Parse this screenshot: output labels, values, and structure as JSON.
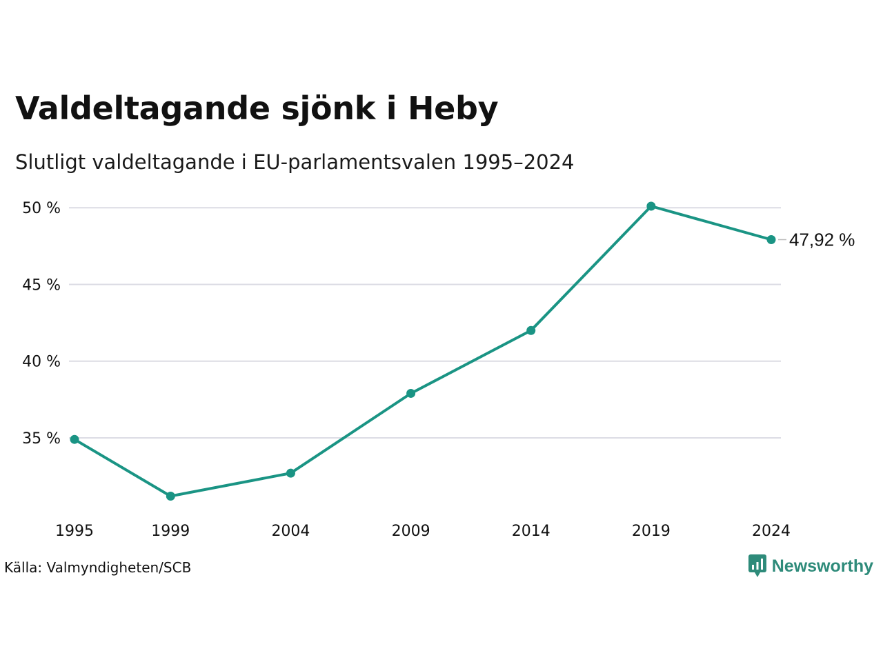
{
  "chart_data": {
    "type": "line",
    "title": "Valdeltagande sjönk i Heby",
    "subtitle": "Slutligt valdeltagande i EU-parlamentsvalen 1995–2024",
    "x": [
      1995,
      1999,
      2004,
      2009,
      2014,
      2019,
      2024
    ],
    "x_tick_labels": [
      "1995",
      "1999",
      "2004",
      "2009",
      "2014",
      "2019",
      "2024"
    ],
    "series": [
      {
        "values": [
          34.9,
          31.2,
          32.7,
          37.9,
          42.0,
          50.1,
          47.92
        ],
        "color": "#1a9484"
      }
    ],
    "y_ticks": [
      35,
      40,
      45,
      50
    ],
    "y_tick_labels": [
      "35 %",
      "40 %",
      "45 %",
      "50 %"
    ],
    "ylim": [
      30.1,
      50.1
    ],
    "grid": true,
    "end_label": "47,92 %",
    "gridline_color": "#dcdce4"
  },
  "footer": {
    "source": "Källa: Valmyndigheten/SCB",
    "brand": "Newsworthy",
    "brand_icon": "newsworthy-logo-icon",
    "brand_color": "#2e8b7a"
  }
}
